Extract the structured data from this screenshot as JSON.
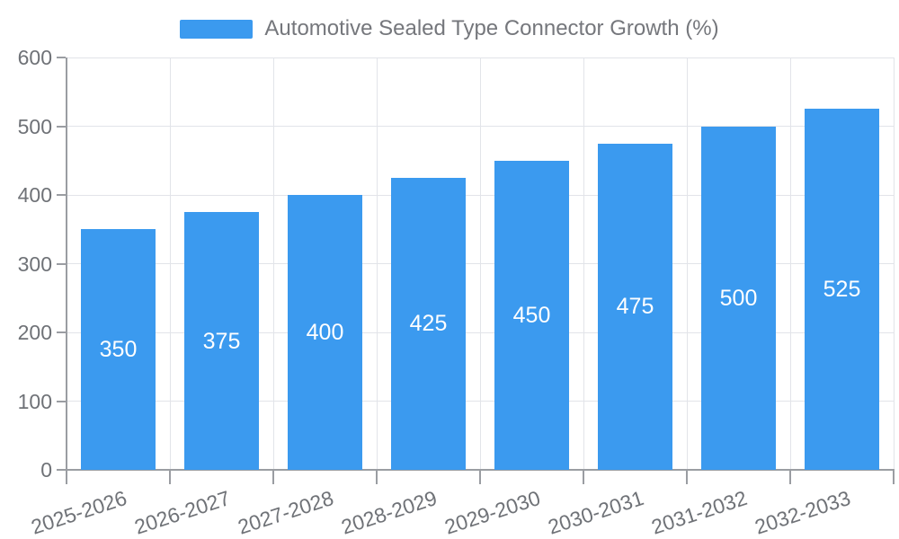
{
  "legend": {
    "label": "Automotive Sealed Type Connector Growth (%)",
    "color": "#3b9aef"
  },
  "chart_data": {
    "type": "bar",
    "title": "Automotive Sealed Type Connector Growth (%)",
    "categories": [
      "2025-2026",
      "2026-2027",
      "2027-2028",
      "2028-2029",
      "2029-2030",
      "2030-2031",
      "2031-2032",
      "2032-2033"
    ],
    "values": [
      350,
      375,
      400,
      425,
      450,
      475,
      500,
      525
    ],
    "series": [
      {
        "name": "Automotive Sealed Type Connector Growth (%)",
        "values": [
          350,
          375,
          400,
          425,
          450,
          475,
          500,
          525
        ]
      }
    ],
    "xlabel": "",
    "ylabel": "",
    "ylim": [
      0,
      600
    ],
    "y_ticks": [
      0,
      100,
      200,
      300,
      400,
      500,
      600
    ],
    "grid": true,
    "legend_position": "top-center",
    "bar_color": "#3b9aef",
    "value_label_position": "inside-center",
    "value_label_color": "#ffffff",
    "x_label_rotation_deg": -18
  },
  "colors": {
    "background": "#ffffff",
    "grid_line": "#e2e4e9",
    "axis_line": "#9a9da2",
    "tick_label": "#6f7277",
    "legend_text": "#75777c"
  }
}
